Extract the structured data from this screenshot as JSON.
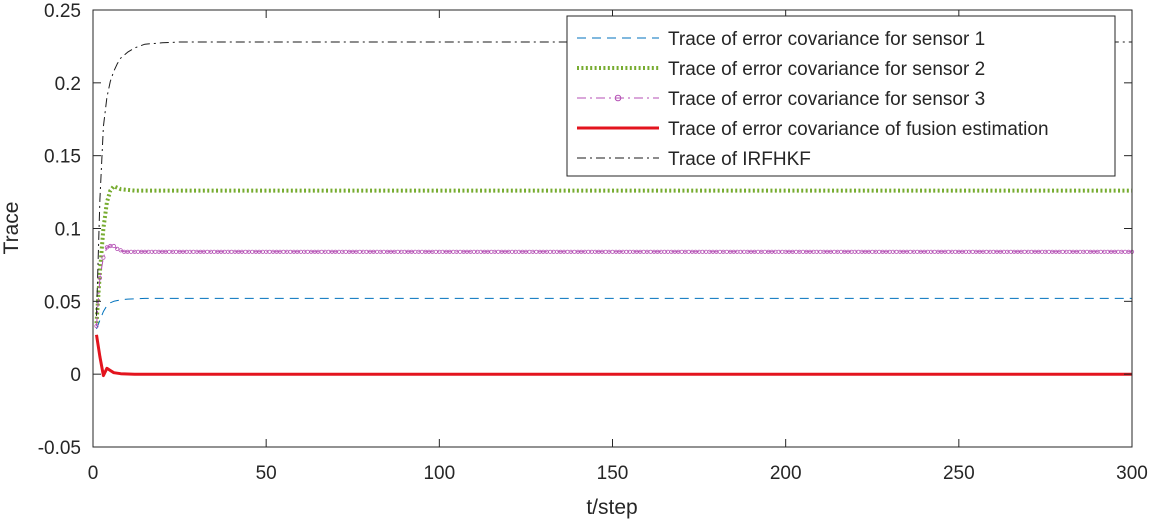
{
  "chart_data": {
    "type": "line",
    "title": "",
    "xlabel": "t/step",
    "ylabel": "Trace",
    "xlim": [
      0,
      300
    ],
    "ylim": [
      -0.05,
      0.25
    ],
    "xticks": [
      0,
      50,
      100,
      150,
      200,
      250,
      300
    ],
    "xtick_labels": [
      "0",
      "50",
      "100",
      "150",
      "200",
      "250",
      "300"
    ],
    "yticks": [
      -0.05,
      0,
      0.05,
      0.1,
      0.15,
      0.2,
      0.25
    ],
    "ytick_labels": [
      "-0.05",
      "0",
      "0.05",
      "0.1",
      "0.15",
      "0.2",
      "0.25"
    ],
    "grid": false,
    "legend_position": "top-right",
    "series": [
      {
        "name": "Trace of error covariance for sensor 1",
        "color": "#0072BD",
        "style": "dashed",
        "x": [
          1,
          2,
          3,
          4,
          5,
          6,
          8,
          10,
          15,
          20,
          40,
          300
        ],
        "y": [
          0.031,
          0.037,
          0.043,
          0.047,
          0.049,
          0.05,
          0.051,
          0.0515,
          0.052,
          0.052,
          0.052,
          0.052
        ]
      },
      {
        "name": "Trace of error covariance for sensor 2",
        "color": "#77AC30",
        "style": "dotted-thick",
        "x": [
          1,
          2,
          3,
          4,
          5,
          6,
          7,
          8,
          10,
          12,
          15,
          20,
          300
        ],
        "y": [
          0.035,
          0.07,
          0.1,
          0.118,
          0.126,
          0.129,
          0.128,
          0.127,
          0.1265,
          0.126,
          0.126,
          0.126,
          0.126
        ]
      },
      {
        "name": "Trace of error covariance for sensor 3",
        "color": "#B44FB4",
        "style": "dashdot-circle",
        "x": [
          1,
          2,
          3,
          4,
          5,
          6,
          7,
          8,
          9,
          10,
          12,
          15,
          20,
          300
        ],
        "y": [
          0.033,
          0.066,
          0.08,
          0.087,
          0.088,
          0.088,
          0.086,
          0.085,
          0.084,
          0.084,
          0.084,
          0.084,
          0.084,
          0.084
        ]
      },
      {
        "name": "Trace of error covariance of fusion estimation",
        "color": "#E3141E",
        "style": "solid-thick",
        "x": [
          1,
          2,
          3,
          4,
          5,
          6,
          8,
          10,
          12,
          15,
          20,
          300
        ],
        "y": [
          0.027,
          0.012,
          -0.001,
          0.004,
          0.0025,
          0.001,
          0.0003,
          0.0001,
          0,
          0,
          0,
          0
        ]
      },
      {
        "name": "Trace of IRFHKF",
        "color": "#1a1a1a",
        "style": "dashdot",
        "x": [
          1,
          2,
          3,
          4,
          5,
          6,
          7,
          8,
          10,
          12,
          15,
          20,
          25,
          30,
          300
        ],
        "y": [
          0.04,
          0.12,
          0.17,
          0.19,
          0.201,
          0.208,
          0.213,
          0.217,
          0.221,
          0.224,
          0.2265,
          0.2275,
          0.228,
          0.228,
          0.228
        ]
      }
    ]
  }
}
